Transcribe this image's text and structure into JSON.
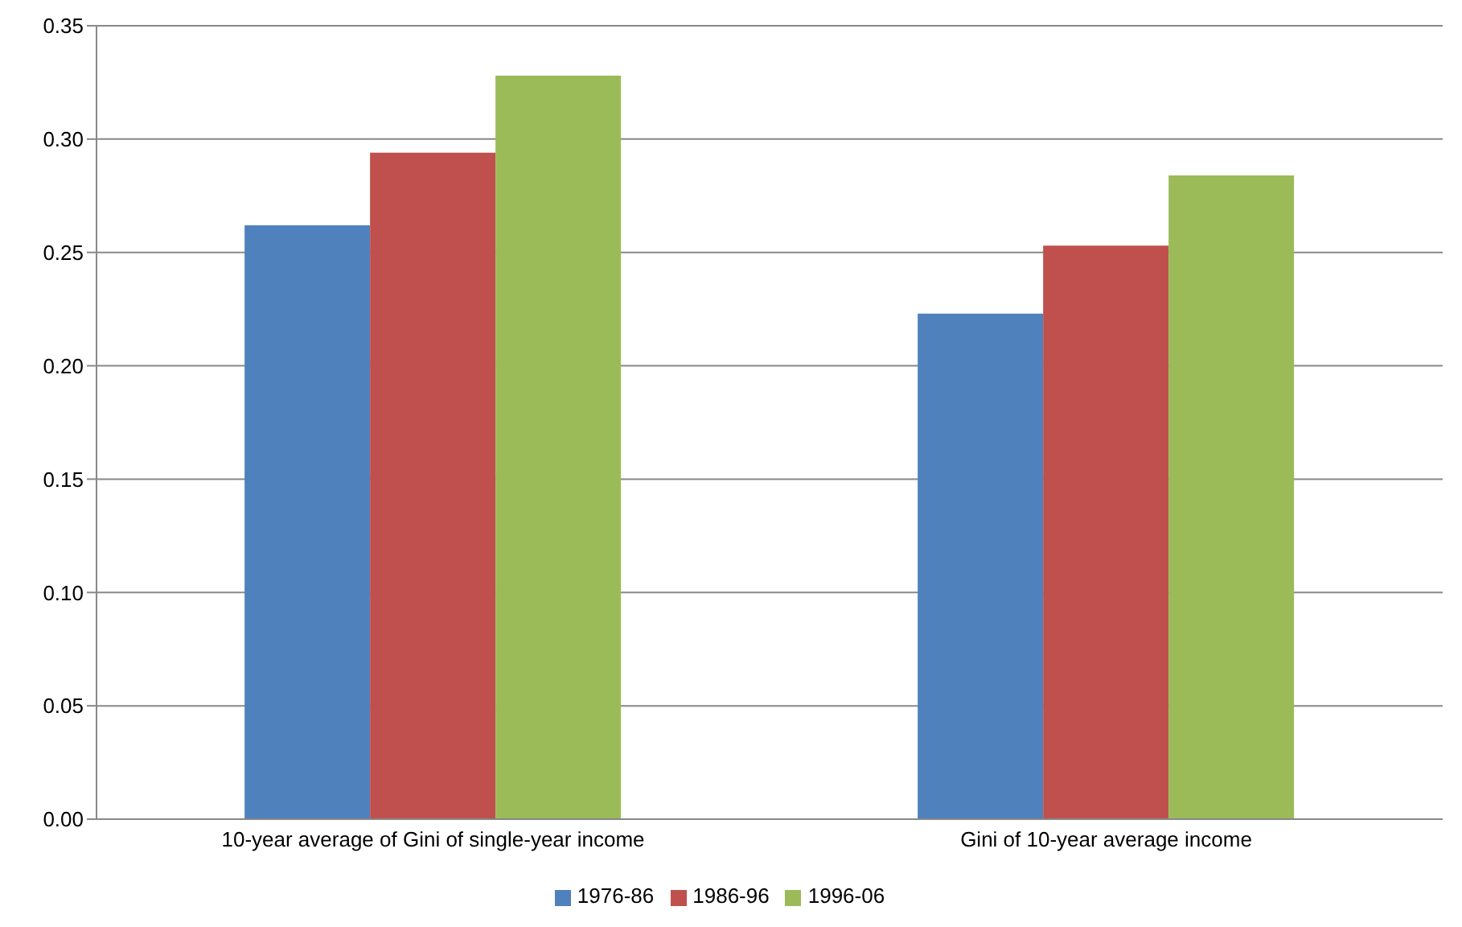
{
  "chart_data": {
    "type": "bar",
    "categories": [
      "10-year average of Gini of single-year income",
      "Gini of 10-year average income"
    ],
    "series": [
      {
        "name": "1976-86",
        "color": "#4f81bd",
        "values": [
          0.262,
          0.223
        ]
      },
      {
        "name": "1986-96",
        "color": "#c0504d",
        "values": [
          0.294,
          0.253
        ]
      },
      {
        "name": "1996-06",
        "color": "#9bbb59",
        "values": [
          0.328,
          0.284
        ]
      }
    ],
    "ylim": [
      0,
      0.35
    ],
    "yticks": [
      {
        "value": 0,
        "label": "0.00"
      },
      {
        "value": 0.05,
        "label": "0.05"
      },
      {
        "value": 0.1,
        "label": "0.10"
      },
      {
        "value": 0.15,
        "label": "0.15"
      },
      {
        "value": 0.2,
        "label": "0.20"
      },
      {
        "value": 0.25,
        "label": "0.25"
      },
      {
        "value": 0.3,
        "label": "0.30"
      },
      {
        "value": 0.35,
        "label": "0.35"
      }
    ],
    "grid": "y",
    "legend": "bottom"
  }
}
